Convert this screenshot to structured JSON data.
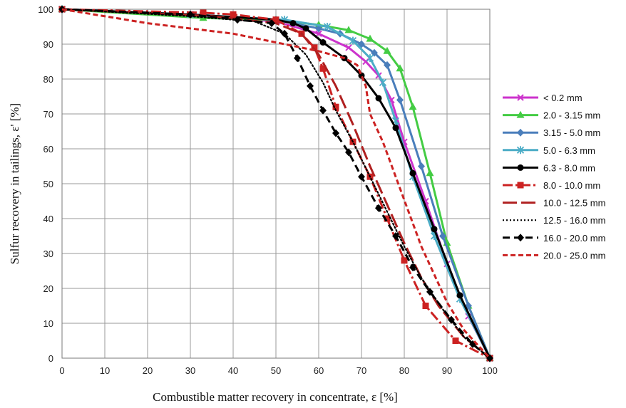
{
  "chart_data": {
    "type": "line",
    "title": "",
    "xlabel": "Combustible matter recovery in concentrate, ε [%]",
    "ylabel": "Sulfur recovery in tailings, ε' [%]",
    "xlim": [
      0,
      100
    ],
    "ylim": [
      0,
      100
    ],
    "x_ticks": [
      "0",
      "10",
      "20",
      "30",
      "40",
      "50",
      "60",
      "70",
      "80",
      "90",
      "100"
    ],
    "y_ticks": [
      "0",
      "10",
      "20",
      "30",
      "40",
      "50",
      "60",
      "70",
      "80",
      "90",
      "100"
    ],
    "grid": true,
    "legend_position": "right",
    "series": [
      {
        "name": "< 0.2 mm",
        "color": "#cc33cc",
        "dash": "solid",
        "marker": "x",
        "points": [
          [
            0,
            100
          ],
          [
            30,
            98.5
          ],
          [
            50,
            96.5
          ],
          [
            60,
            93
          ],
          [
            67,
            89
          ],
          [
            71,
            85
          ],
          [
            74,
            81
          ],
          [
            77,
            74
          ],
          [
            80,
            62
          ],
          [
            85,
            45
          ],
          [
            90,
            27
          ],
          [
            95,
            12
          ],
          [
            100,
            0
          ]
        ]
      },
      {
        "name": "2.0 - 3.15 mm",
        "color": "#44cc44",
        "dash": "solid",
        "marker": "triangle",
        "points": [
          [
            0,
            100
          ],
          [
            33,
            97.5
          ],
          [
            50,
            97
          ],
          [
            60,
            95.5
          ],
          [
            67,
            94
          ],
          [
            72,
            91.5
          ],
          [
            76,
            88
          ],
          [
            79,
            83
          ],
          [
            82,
            72
          ],
          [
            86,
            53
          ],
          [
            90,
            33
          ],
          [
            95,
            15
          ],
          [
            100,
            0
          ]
        ]
      },
      {
        "name": "3.15 - 5.0 mm",
        "color": "#4a7ebb",
        "dash": "solid",
        "marker": "diamond",
        "points": [
          [
            0,
            100
          ],
          [
            30,
            98.5
          ],
          [
            50,
            97
          ],
          [
            60,
            94.5
          ],
          [
            65,
            93
          ],
          [
            70,
            90
          ],
          [
            73,
            87.5
          ],
          [
            76,
            84
          ],
          [
            79,
            74
          ],
          [
            84,
            55
          ],
          [
            89,
            35
          ],
          [
            95,
            15
          ],
          [
            100,
            0
          ]
        ]
      },
      {
        "name": "5.0 - 6.3 mm",
        "color": "#4bacc6",
        "dash": "solid",
        "marker": "star",
        "points": [
          [
            0,
            100
          ],
          [
            30,
            98.5
          ],
          [
            52,
            97
          ],
          [
            62,
            95
          ],
          [
            68,
            91
          ],
          [
            72,
            86
          ],
          [
            75,
            79
          ],
          [
            78,
            68
          ],
          [
            82,
            52
          ],
          [
            87,
            35
          ],
          [
            93,
            17
          ],
          [
            100,
            0
          ]
        ]
      },
      {
        "name": "6.3 - 8.0 mm",
        "color": "#000000",
        "dash": "solid",
        "marker": "circle",
        "points": [
          [
            0,
            100
          ],
          [
            30,
            98.5
          ],
          [
            50,
            97
          ],
          [
            54,
            96
          ],
          [
            57,
            94.5
          ],
          [
            61,
            90.5
          ],
          [
            66,
            86
          ],
          [
            70,
            81
          ],
          [
            74,
            74.5
          ],
          [
            78,
            66
          ],
          [
            82,
            53
          ],
          [
            87,
            37
          ],
          [
            93,
            18
          ],
          [
            100,
            0
          ]
        ]
      },
      {
        "name": "8.0 - 10.0 mm",
        "color": "#cc2222",
        "dash": "dash-dot",
        "marker": "square",
        "points": [
          [
            0,
            100
          ],
          [
            33,
            99
          ],
          [
            40,
            98.5
          ],
          [
            50,
            97
          ],
          [
            56,
            93
          ],
          [
            59,
            89
          ],
          [
            61,
            83
          ],
          [
            64,
            72
          ],
          [
            68,
            62
          ],
          [
            72,
            52
          ],
          [
            76,
            40
          ],
          [
            80,
            28
          ],
          [
            85,
            15
          ],
          [
            92,
            5
          ],
          [
            100,
            0
          ]
        ]
      },
      {
        "name": "10.0 - 12.5 mm",
        "color": "#b02020",
        "dash": "long-dash",
        "marker": "none",
        "points": [
          [
            0,
            100
          ],
          [
            35,
            98
          ],
          [
            50,
            96
          ],
          [
            56,
            93
          ],
          [
            60,
            87
          ],
          [
            64,
            78
          ],
          [
            68,
            67
          ],
          [
            72,
            55
          ],
          [
            76,
            44
          ],
          [
            80,
            33
          ],
          [
            84,
            23
          ],
          [
            88,
            15
          ],
          [
            94,
            6
          ],
          [
            100,
            0
          ]
        ]
      },
      {
        "name": "12.5 - 16.0 mm",
        "color": "#000000",
        "dash": "dot",
        "marker": "none",
        "points": [
          [
            0,
            100
          ],
          [
            30,
            98
          ],
          [
            45,
            96.5
          ],
          [
            52,
            93
          ],
          [
            57,
            87
          ],
          [
            61,
            79
          ],
          [
            64,
            71
          ],
          [
            68,
            62
          ],
          [
            72,
            52
          ],
          [
            76,
            42
          ],
          [
            80,
            32
          ],
          [
            84,
            23
          ],
          [
            89,
            14
          ],
          [
            94,
            6
          ],
          [
            100,
            0
          ]
        ]
      },
      {
        "name": "16.0 - 20.0 mm",
        "color": "#000000",
        "dash": "dash",
        "marker": "diamond",
        "points": [
          [
            0,
            100
          ],
          [
            30,
            98.5
          ],
          [
            41,
            97
          ],
          [
            49,
            96
          ],
          [
            52,
            93
          ],
          [
            55,
            86
          ],
          [
            58,
            78
          ],
          [
            61,
            71
          ],
          [
            64,
            64.5
          ],
          [
            67,
            59
          ],
          [
            70,
            52
          ],
          [
            74,
            43
          ],
          [
            78,
            35
          ],
          [
            82,
            26
          ],
          [
            86,
            19
          ],
          [
            91,
            11
          ],
          [
            96,
            4
          ],
          [
            100,
            0
          ]
        ]
      },
      {
        "name": "20.0 - 25.0 mm",
        "color": "#cc2222",
        "dash": "short-dash",
        "marker": "none",
        "points": [
          [
            0,
            100
          ],
          [
            20,
            96
          ],
          [
            40,
            93
          ],
          [
            52,
            90
          ],
          [
            60,
            88
          ],
          [
            66,
            86
          ],
          [
            69,
            84
          ],
          [
            71,
            78
          ],
          [
            72,
            70
          ],
          [
            75,
            62
          ],
          [
            78,
            52
          ],
          [
            81,
            42
          ],
          [
            84,
            32
          ],
          [
            87,
            24
          ],
          [
            90,
            16
          ],
          [
            94,
            8
          ],
          [
            100,
            0
          ]
        ]
      }
    ]
  }
}
